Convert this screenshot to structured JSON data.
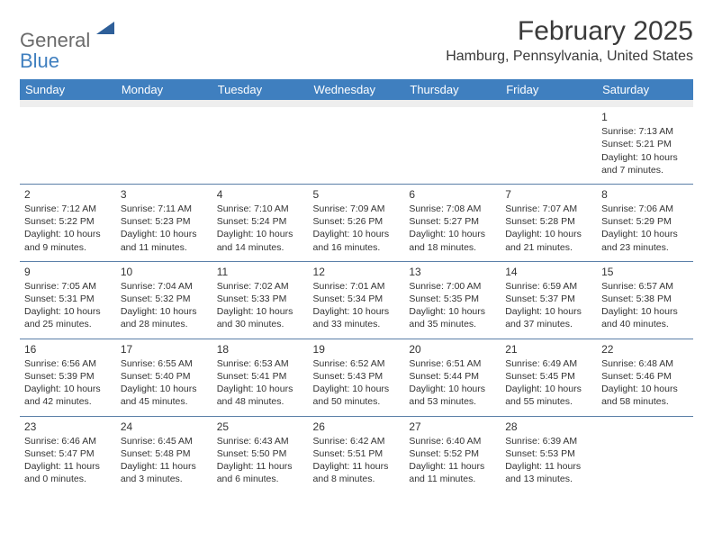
{
  "logo": {
    "main": "General",
    "sub": "Blue"
  },
  "title": "February 2025",
  "location": "Hamburg, Pennsylvania, United States",
  "colors": {
    "header_bg": "#3f7fbf",
    "header_text": "#ffffff",
    "rule": "#5a7fa8",
    "spacer_bg": "#eeeeee",
    "logo_gray": "#6b6b6b",
    "logo_blue": "#3f7fbf",
    "logo_mark": "#2e5f99",
    "body_text": "#333333",
    "title_text": "#3a3a3a"
  },
  "typography": {
    "title_fontsize": 30,
    "location_fontsize": 16,
    "dow_fontsize": 13,
    "daynum_fontsize": 12,
    "cell_fontsize": 10.5,
    "logo_fontsize": 22
  },
  "daysOfWeek": [
    "Sunday",
    "Monday",
    "Tuesday",
    "Wednesday",
    "Thursday",
    "Friday",
    "Saturday"
  ],
  "weeks": [
    [
      null,
      null,
      null,
      null,
      null,
      null,
      {
        "n": "1",
        "sr": "Sunrise: 7:13 AM",
        "ss": "Sunset: 5:21 PM",
        "d1": "Daylight: 10 hours",
        "d2": "and 7 minutes."
      }
    ],
    [
      {
        "n": "2",
        "sr": "Sunrise: 7:12 AM",
        "ss": "Sunset: 5:22 PM",
        "d1": "Daylight: 10 hours",
        "d2": "and 9 minutes."
      },
      {
        "n": "3",
        "sr": "Sunrise: 7:11 AM",
        "ss": "Sunset: 5:23 PM",
        "d1": "Daylight: 10 hours",
        "d2": "and 11 minutes."
      },
      {
        "n": "4",
        "sr": "Sunrise: 7:10 AM",
        "ss": "Sunset: 5:24 PM",
        "d1": "Daylight: 10 hours",
        "d2": "and 14 minutes."
      },
      {
        "n": "5",
        "sr": "Sunrise: 7:09 AM",
        "ss": "Sunset: 5:26 PM",
        "d1": "Daylight: 10 hours",
        "d2": "and 16 minutes."
      },
      {
        "n": "6",
        "sr": "Sunrise: 7:08 AM",
        "ss": "Sunset: 5:27 PM",
        "d1": "Daylight: 10 hours",
        "d2": "and 18 minutes."
      },
      {
        "n": "7",
        "sr": "Sunrise: 7:07 AM",
        "ss": "Sunset: 5:28 PM",
        "d1": "Daylight: 10 hours",
        "d2": "and 21 minutes."
      },
      {
        "n": "8",
        "sr": "Sunrise: 7:06 AM",
        "ss": "Sunset: 5:29 PM",
        "d1": "Daylight: 10 hours",
        "d2": "and 23 minutes."
      }
    ],
    [
      {
        "n": "9",
        "sr": "Sunrise: 7:05 AM",
        "ss": "Sunset: 5:31 PM",
        "d1": "Daylight: 10 hours",
        "d2": "and 25 minutes."
      },
      {
        "n": "10",
        "sr": "Sunrise: 7:04 AM",
        "ss": "Sunset: 5:32 PM",
        "d1": "Daylight: 10 hours",
        "d2": "and 28 minutes."
      },
      {
        "n": "11",
        "sr": "Sunrise: 7:02 AM",
        "ss": "Sunset: 5:33 PM",
        "d1": "Daylight: 10 hours",
        "d2": "and 30 minutes."
      },
      {
        "n": "12",
        "sr": "Sunrise: 7:01 AM",
        "ss": "Sunset: 5:34 PM",
        "d1": "Daylight: 10 hours",
        "d2": "and 33 minutes."
      },
      {
        "n": "13",
        "sr": "Sunrise: 7:00 AM",
        "ss": "Sunset: 5:35 PM",
        "d1": "Daylight: 10 hours",
        "d2": "and 35 minutes."
      },
      {
        "n": "14",
        "sr": "Sunrise: 6:59 AM",
        "ss": "Sunset: 5:37 PM",
        "d1": "Daylight: 10 hours",
        "d2": "and 37 minutes."
      },
      {
        "n": "15",
        "sr": "Sunrise: 6:57 AM",
        "ss": "Sunset: 5:38 PM",
        "d1": "Daylight: 10 hours",
        "d2": "and 40 minutes."
      }
    ],
    [
      {
        "n": "16",
        "sr": "Sunrise: 6:56 AM",
        "ss": "Sunset: 5:39 PM",
        "d1": "Daylight: 10 hours",
        "d2": "and 42 minutes."
      },
      {
        "n": "17",
        "sr": "Sunrise: 6:55 AM",
        "ss": "Sunset: 5:40 PM",
        "d1": "Daylight: 10 hours",
        "d2": "and 45 minutes."
      },
      {
        "n": "18",
        "sr": "Sunrise: 6:53 AM",
        "ss": "Sunset: 5:41 PM",
        "d1": "Daylight: 10 hours",
        "d2": "and 48 minutes."
      },
      {
        "n": "19",
        "sr": "Sunrise: 6:52 AM",
        "ss": "Sunset: 5:43 PM",
        "d1": "Daylight: 10 hours",
        "d2": "and 50 minutes."
      },
      {
        "n": "20",
        "sr": "Sunrise: 6:51 AM",
        "ss": "Sunset: 5:44 PM",
        "d1": "Daylight: 10 hours",
        "d2": "and 53 minutes."
      },
      {
        "n": "21",
        "sr": "Sunrise: 6:49 AM",
        "ss": "Sunset: 5:45 PM",
        "d1": "Daylight: 10 hours",
        "d2": "and 55 minutes."
      },
      {
        "n": "22",
        "sr": "Sunrise: 6:48 AM",
        "ss": "Sunset: 5:46 PM",
        "d1": "Daylight: 10 hours",
        "d2": "and 58 minutes."
      }
    ],
    [
      {
        "n": "23",
        "sr": "Sunrise: 6:46 AM",
        "ss": "Sunset: 5:47 PM",
        "d1": "Daylight: 11 hours",
        "d2": "and 0 minutes."
      },
      {
        "n": "24",
        "sr": "Sunrise: 6:45 AM",
        "ss": "Sunset: 5:48 PM",
        "d1": "Daylight: 11 hours",
        "d2": "and 3 minutes."
      },
      {
        "n": "25",
        "sr": "Sunrise: 6:43 AM",
        "ss": "Sunset: 5:50 PM",
        "d1": "Daylight: 11 hours",
        "d2": "and 6 minutes."
      },
      {
        "n": "26",
        "sr": "Sunrise: 6:42 AM",
        "ss": "Sunset: 5:51 PM",
        "d1": "Daylight: 11 hours",
        "d2": "and 8 minutes."
      },
      {
        "n": "27",
        "sr": "Sunrise: 6:40 AM",
        "ss": "Sunset: 5:52 PM",
        "d1": "Daylight: 11 hours",
        "d2": "and 11 minutes."
      },
      {
        "n": "28",
        "sr": "Sunrise: 6:39 AM",
        "ss": "Sunset: 5:53 PM",
        "d1": "Daylight: 11 hours",
        "d2": "and 13 minutes."
      },
      null
    ]
  ]
}
